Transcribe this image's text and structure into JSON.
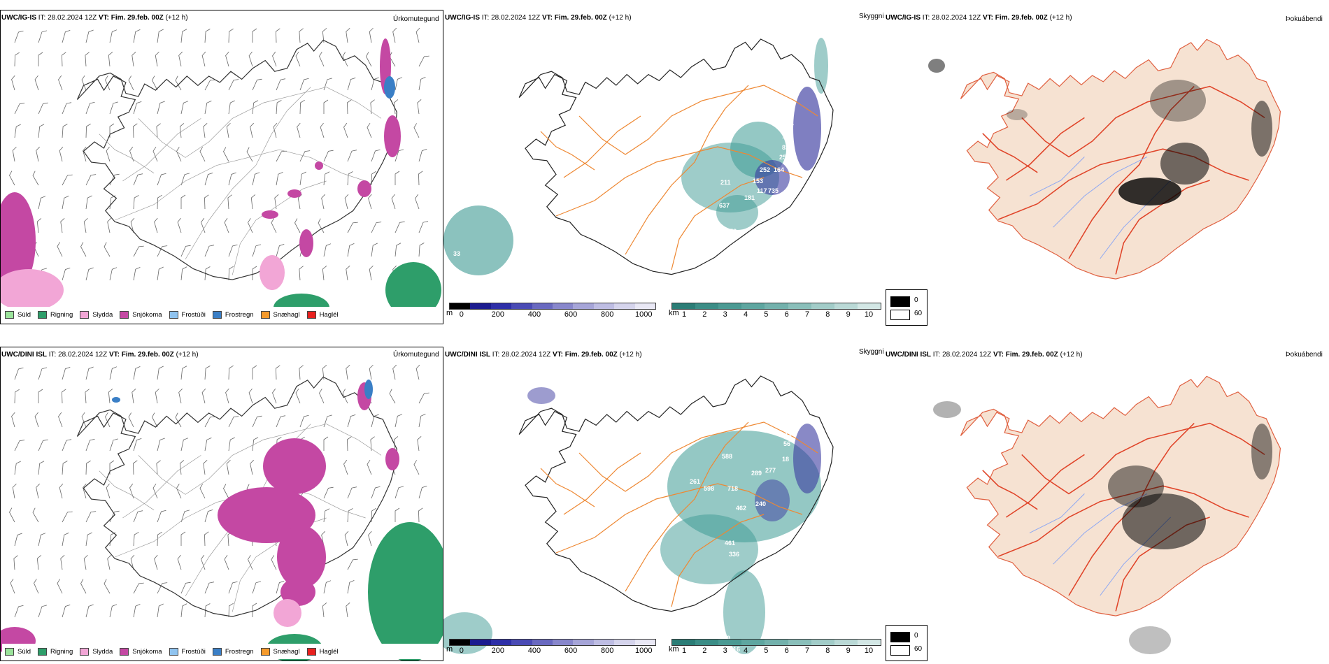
{
  "colors": {
    "sold": "#9be39b",
    "rigning": "#2e9e6a",
    "slydda": "#f2a6d6",
    "snjokoma": "#c448a3",
    "frostudi": "#8fc3ef",
    "frostregn": "#3a7fc6",
    "snaehagl": "#f59a2b",
    "haglel": "#e8201e",
    "land": "#f6e2d2",
    "road": "#ee8833",
    "road_red": "#e0452a",
    "river": "#8ea8f2",
    "teal": "#3d9a93",
    "purple": "#3b3aa0"
  },
  "rows": [
    {
      "model": "UWC/IG-IS",
      "it_label": "IT:",
      "it_value": "28.02.2024 12Z",
      "vt_label": "VT:",
      "vt_value": "Fim. 29.feb. 00Z",
      "lead": "(+12 h)",
      "visibility_labels": [
        "211",
        "637",
        "378",
        "153",
        "117",
        "735",
        "181",
        "252",
        "164",
        "227",
        "101",
        "82",
        "25",
        "33"
      ]
    },
    {
      "model": "UWC/DINI ISL",
      "it_label": "IT:",
      "it_value": "28.02.2024 12Z",
      "vt_label": "VT:",
      "vt_value": "Fim. 29.feb. 00Z",
      "lead": "(+12 h)",
      "visibility_labels": [
        "588",
        "261",
        "598",
        "718",
        "289",
        "277",
        "462",
        "240",
        "461",
        "336",
        "137",
        "56",
        "18",
        "49",
        "16"
      ]
    }
  ],
  "panel_kinds": {
    "precip": "Úrkomutegund",
    "visibility": "Skyggni",
    "fog": "Þokuábendi"
  },
  "precip_legend": [
    {
      "label": "Súld",
      "color_key": "sold"
    },
    {
      "label": "Rigning",
      "color_key": "rigning"
    },
    {
      "label": "Slydda",
      "color_key": "slydda"
    },
    {
      "label": "Snjókoma",
      "color_key": "snjokoma"
    },
    {
      "label": "Frostúði",
      "color_key": "frostudi"
    },
    {
      "label": "Frostregn",
      "color_key": "frostregn"
    },
    {
      "label": "Snæhagl",
      "color_key": "snaehagl"
    },
    {
      "label": "Haglél",
      "color_key": "haglel"
    }
  ],
  "colorbar_m": {
    "unit": "m",
    "ticks": [
      "0",
      "200",
      "400",
      "600",
      "800",
      "1000"
    ],
    "colors": [
      "#000000",
      "#1b1b8f",
      "#2e2fa8",
      "#4a4bb5",
      "#6969c0",
      "#8887cc",
      "#a6a5d8",
      "#bebde3",
      "#d5d4ec",
      "#e9e8f5"
    ]
  },
  "colorbar_km": {
    "unit": "km",
    "ticks": [
      "1",
      "2",
      "3",
      "4",
      "5",
      "6",
      "7",
      "8",
      "9",
      "10"
    ],
    "colors": [
      "#2b7d76",
      "#3b8d86",
      "#4b9a93",
      "#5ea6a0",
      "#73b1ac",
      "#8abfba",
      "#a2ccc8",
      "#bad9d6",
      "#d3e7e5"
    ]
  },
  "fog_key": {
    "dark_label": "0",
    "light_label": "60"
  }
}
